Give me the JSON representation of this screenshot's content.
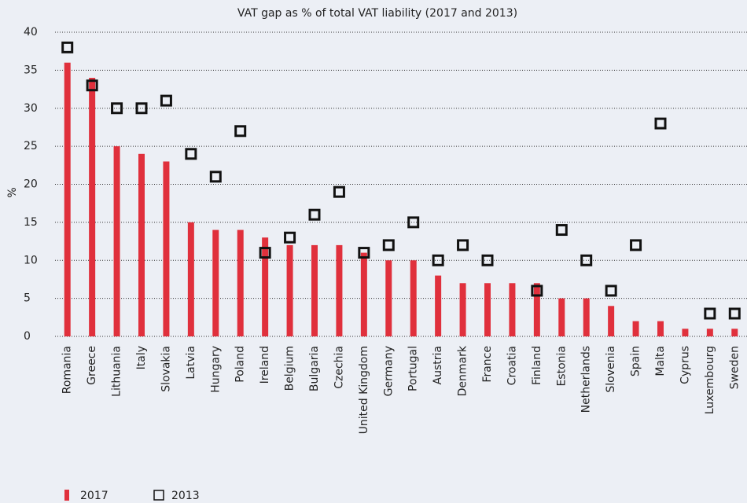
{
  "chart_data": {
    "type": "bar",
    "title": "VAT gap as % of total VAT liability (2017 and 2013)",
    "y_label": "%",
    "categories": [
      "Romania",
      "Greece",
      "Lithuania",
      "Italy",
      "Slovakia",
      "Latvia",
      "Hungary",
      "Poland",
      "Ireland",
      "Belgium",
      "Bulgaria",
      "Czechia",
      "United Kingdom",
      "Germany",
      "Portugal",
      "Austria",
      "Denmark",
      "France",
      "Croatia",
      "Finland",
      "Estonia",
      "Netherlands",
      "Slovenia",
      "Spain",
      "Malta",
      "Cyprus",
      "Luxembourg",
      "Sweden"
    ],
    "series": [
      {
        "name": "2017",
        "color": "#e0303c",
        "mark": "bar",
        "values": [
          36,
          34,
          25,
          24,
          23,
          15,
          14,
          14,
          13,
          12,
          12,
          12,
          11,
          10,
          10,
          8,
          7,
          7,
          7,
          7,
          5,
          5,
          4,
          2,
          2,
          1,
          1,
          1
        ]
      },
      {
        "name": "2013",
        "color": "#111111",
        "mark": "square",
        "values": [
          38,
          33,
          30,
          30,
          31,
          24,
          21,
          27,
          11,
          13,
          16,
          19,
          11,
          12,
          15,
          10,
          12,
          10,
          null,
          6,
          14,
          10,
          6,
          12,
          28,
          null,
          3,
          3
        ]
      }
    ],
    "ylim": [
      0,
      40
    ],
    "yticks": [
      0,
      5,
      10,
      15,
      20,
      25,
      30,
      35,
      40
    ],
    "grid": true
  }
}
